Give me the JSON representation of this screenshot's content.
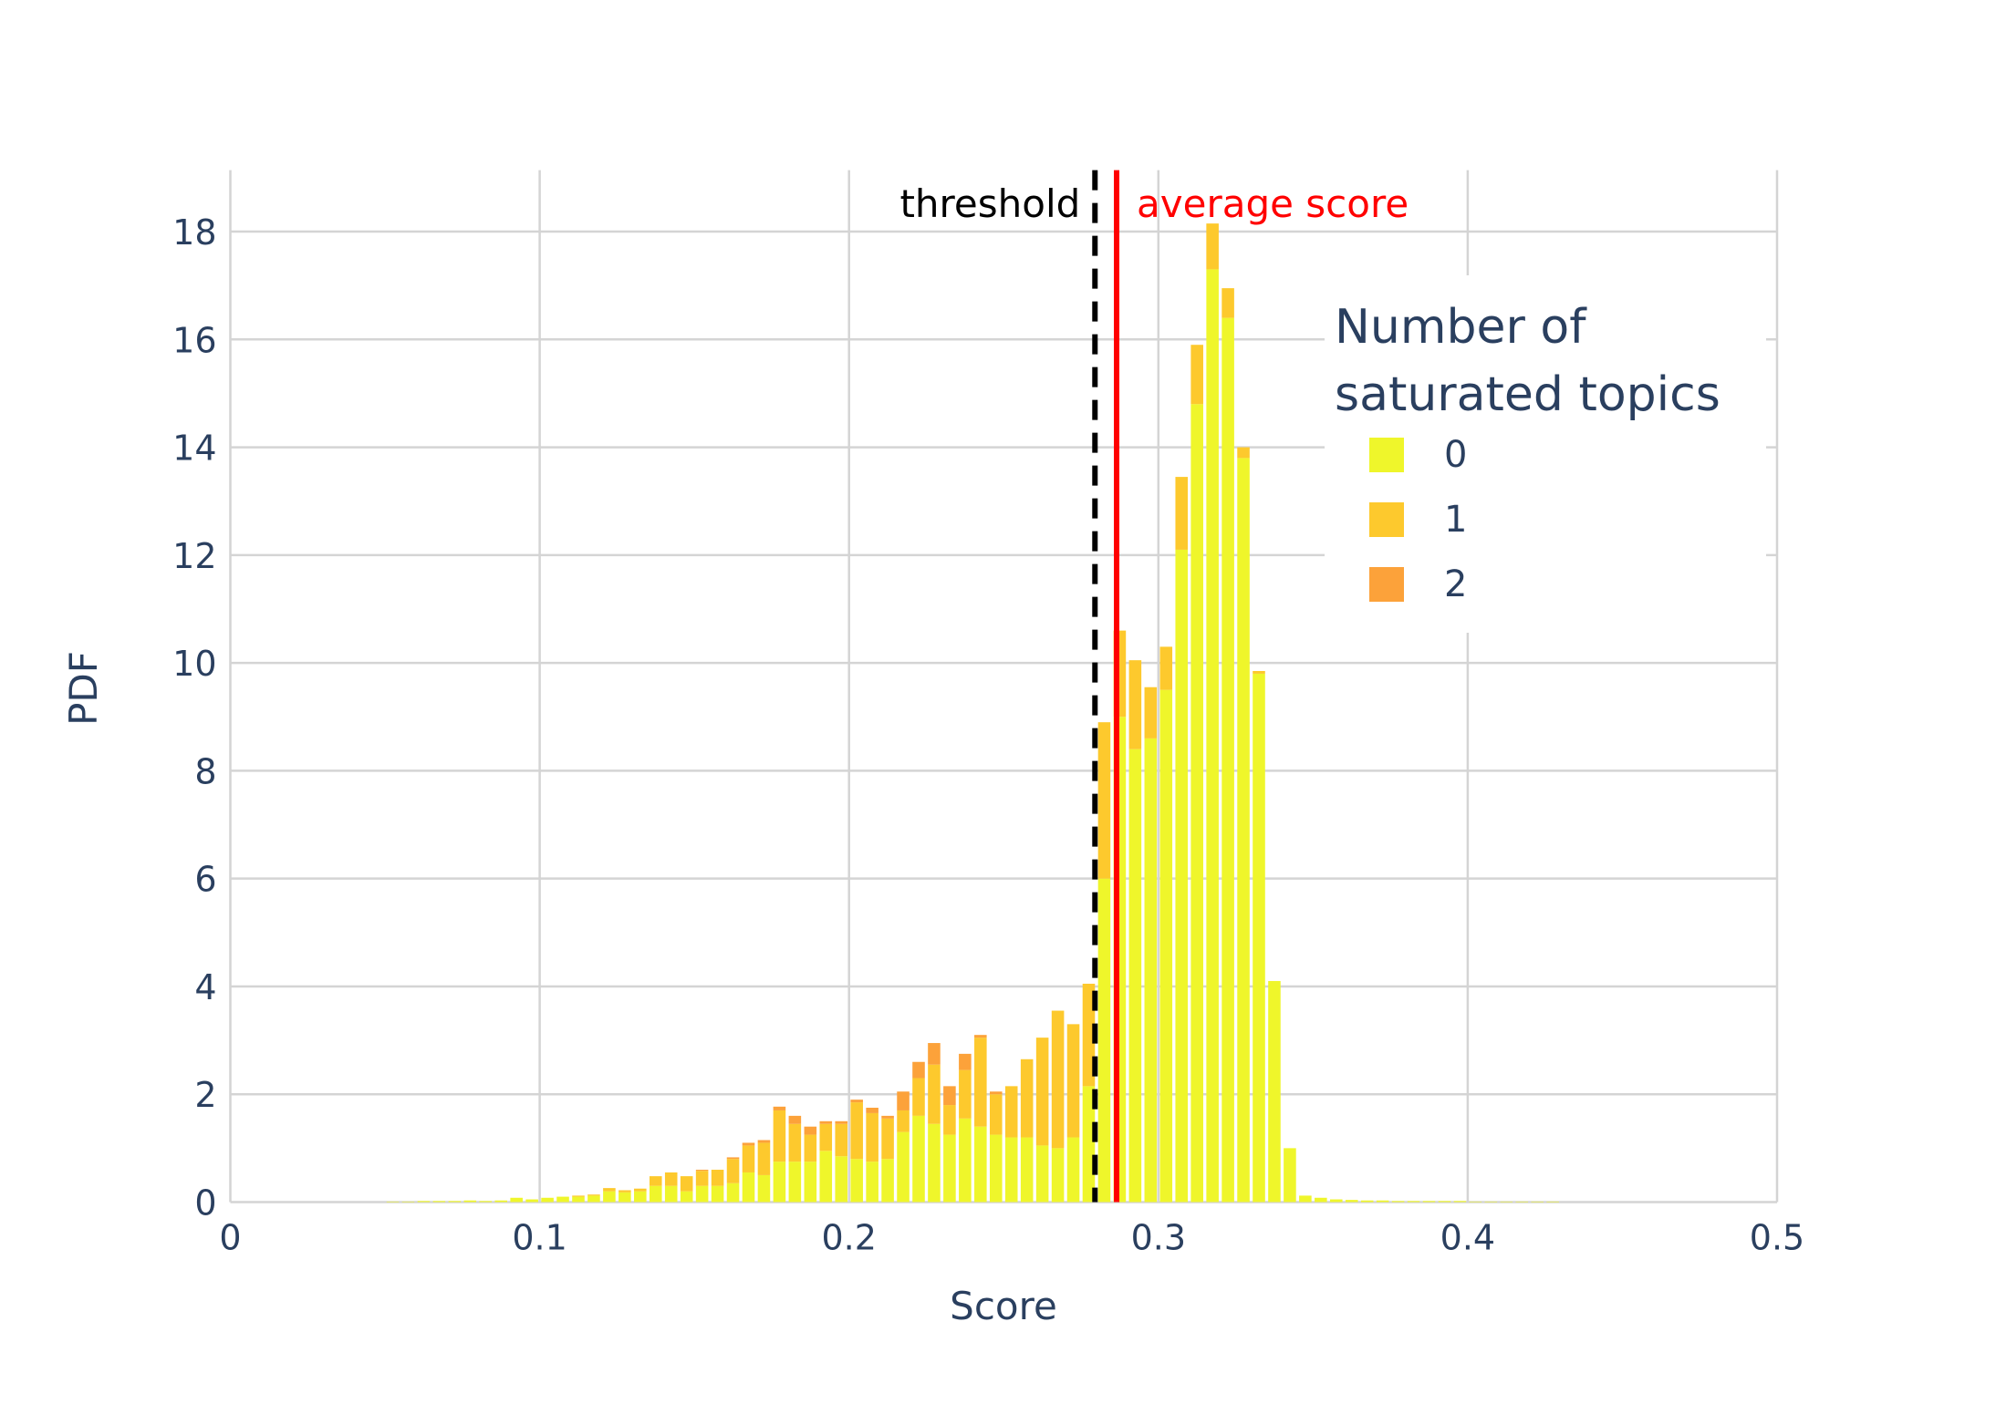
{
  "chart_data": {
    "type": "histogram",
    "barmode": "stack",
    "xlabel": "Score",
    "ylabel": "PDF",
    "xlim": [
      0,
      0.5
    ],
    "ylim": [
      0,
      19.14
    ],
    "xticks": [
      0,
      0.1,
      0.2,
      0.3,
      0.4,
      0.5
    ],
    "yticks": [
      0,
      2,
      4,
      6,
      8,
      10,
      12,
      14,
      16,
      18
    ],
    "grid": true,
    "bins": [
      0.05,
      0.055,
      0.06,
      0.065,
      0.07,
      0.075,
      0.08,
      0.085,
      0.09,
      0.095,
      0.1,
      0.105,
      0.11,
      0.115,
      0.12,
      0.125,
      0.13,
      0.135,
      0.14,
      0.145,
      0.15,
      0.155,
      0.16,
      0.165,
      0.17,
      0.175,
      0.18,
      0.185,
      0.19,
      0.195,
      0.2,
      0.205,
      0.21,
      0.215,
      0.22,
      0.225,
      0.23,
      0.235,
      0.24,
      0.245,
      0.25,
      0.255,
      0.26,
      0.265,
      0.27,
      0.275,
      0.28,
      0.285,
      0.29,
      0.295,
      0.3,
      0.305,
      0.31,
      0.315,
      0.32,
      0.325,
      0.33,
      0.335,
      0.34,
      0.345,
      0.35,
      0.355,
      0.36,
      0.365,
      0.37,
      0.375,
      0.38,
      0.385,
      0.39,
      0.395,
      0.4,
      0.405,
      0.41,
      0.415,
      0.42,
      0.425,
      0.43
    ],
    "legend_title": "Number of saturated topics",
    "series": [
      {
        "name": "0",
        "color": "#eff62b",
        "values": [
          0.01,
          0.01,
          0.02,
          0.02,
          0.02,
          0.03,
          0.02,
          0.03,
          0.08,
          0.05,
          0.08,
          0.1,
          0.1,
          0.12,
          0.2,
          0.18,
          0.2,
          0.3,
          0.3,
          0.2,
          0.3,
          0.3,
          0.35,
          0.55,
          0.5,
          0.75,
          0.75,
          0.75,
          0.95,
          0.85,
          0.8,
          0.75,
          0.8,
          1.3,
          1.6,
          1.45,
          1.25,
          1.55,
          1.4,
          1.25,
          1.2,
          1.2,
          1.05,
          1.0,
          1.2,
          2.15,
          6.0,
          9.0,
          8.4,
          8.6,
          9.5,
          12.1,
          14.8,
          17.3,
          16.4,
          13.8,
          9.8,
          4.1,
          1.0,
          0.12,
          0.08,
          0.05,
          0.04,
          0.03,
          0.03,
          0.02,
          0.02,
          0.02,
          0.02,
          0.02,
          0.01,
          0.01,
          0.01,
          0.01,
          0.01,
          0.01
        ]
      },
      {
        "name": "1",
        "color": "#fdc92d",
        "values": [
          0,
          0,
          0,
          0,
          0,
          0,
          0,
          0,
          0,
          0,
          0,
          0,
          0.02,
          0.02,
          0.06,
          0.04,
          0.05,
          0.18,
          0.25,
          0.28,
          0.28,
          0.3,
          0.45,
          0.5,
          0.6,
          0.95,
          0.7,
          0.5,
          0.5,
          0.6,
          1.05,
          0.9,
          0.75,
          0.4,
          0.7,
          1.1,
          0.55,
          0.9,
          1.65,
          0.75,
          0.95,
          1.45,
          2.0,
          2.55,
          2.1,
          1.9,
          2.9,
          1.6,
          1.65,
          0.95,
          0.8,
          1.35,
          1.1,
          0.85,
          0.55,
          0.2,
          0.05,
          0,
          0,
          0,
          0,
          0,
          0,
          0,
          0,
          0,
          0,
          0,
          0,
          0,
          0,
          0,
          0,
          0,
          0,
          0
        ]
      },
      {
        "name": "2",
        "color": "#fca23a",
        "values": [
          0,
          0,
          0,
          0,
          0,
          0,
          0,
          0,
          0,
          0,
          0,
          0,
          0,
          0,
          0,
          0,
          0,
          0,
          0,
          0,
          0.02,
          0,
          0.03,
          0.05,
          0.05,
          0.07,
          0.15,
          0.15,
          0.05,
          0.05,
          0.05,
          0.1,
          0.05,
          0.35,
          0.3,
          0.4,
          0.35,
          0.3,
          0.05,
          0.05,
          0,
          0,
          0,
          0,
          0,
          0,
          0,
          0,
          0,
          0,
          0,
          0,
          0,
          0,
          0,
          0,
          0,
          0,
          0,
          0,
          0,
          0,
          0,
          0,
          0,
          0,
          0,
          0,
          0,
          0,
          0,
          0,
          0,
          0,
          0,
          0
        ]
      }
    ],
    "vlines": [
      {
        "x": 0.2795,
        "label": "threshold",
        "color": "#000000",
        "dash": true
      },
      {
        "x": 0.2865,
        "label": "average score",
        "color": "#ff0000",
        "dash": false
      }
    ]
  }
}
